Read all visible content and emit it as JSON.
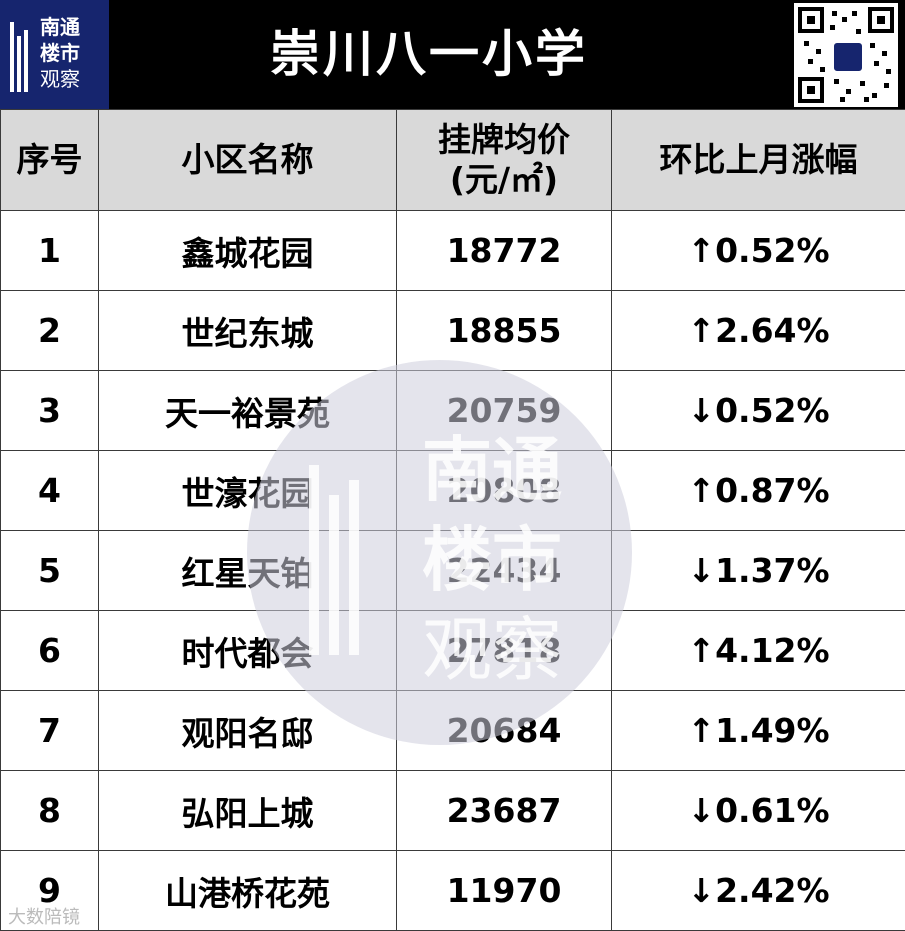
{
  "logo": {
    "line1": "南通",
    "line2": "楼市",
    "line3": "观察"
  },
  "title": "崇川八一小学",
  "headers": {
    "index": "序号",
    "name": "小区名称",
    "price_line1": "挂牌均价",
    "price_line2": "(元/㎡)",
    "change": "环比上月涨幅"
  },
  "rows": [
    {
      "index": "1",
      "name": "鑫城花园",
      "price": "18772",
      "change": "↑0.52%"
    },
    {
      "index": "2",
      "name": "世纪东城",
      "price": "18855",
      "change": "↑2.64%"
    },
    {
      "index": "3",
      "name": "天一裕景苑",
      "price": "20759",
      "change": "↓0.52%"
    },
    {
      "index": "4",
      "name": "世濠花园",
      "price": "20808",
      "change": "↑0.87%"
    },
    {
      "index": "5",
      "name": "红星天铂",
      "price": "22434",
      "change": "↓1.37%"
    },
    {
      "index": "6",
      "name": "时代都会",
      "price": "27818",
      "change": "↑4.12%"
    },
    {
      "index": "7",
      "name": "观阳名邸",
      "price": "20684",
      "change": "↑1.49%"
    },
    {
      "index": "8",
      "name": "弘阳上城",
      "price": "23687",
      "change": "↓0.61%"
    },
    {
      "index": "9",
      "name": "山港桥花苑",
      "price": "11970",
      "change": "↓2.42%"
    }
  ],
  "watermark": {
    "line1": "南通",
    "line2": "楼市",
    "line3": "观察"
  },
  "footer": "大数陪镜",
  "colors": {
    "banner": "#000000",
    "logo_bg": "#16256e",
    "header_bg": "#d9d9d9",
    "red": "#c00000",
    "green": "#548235"
  }
}
